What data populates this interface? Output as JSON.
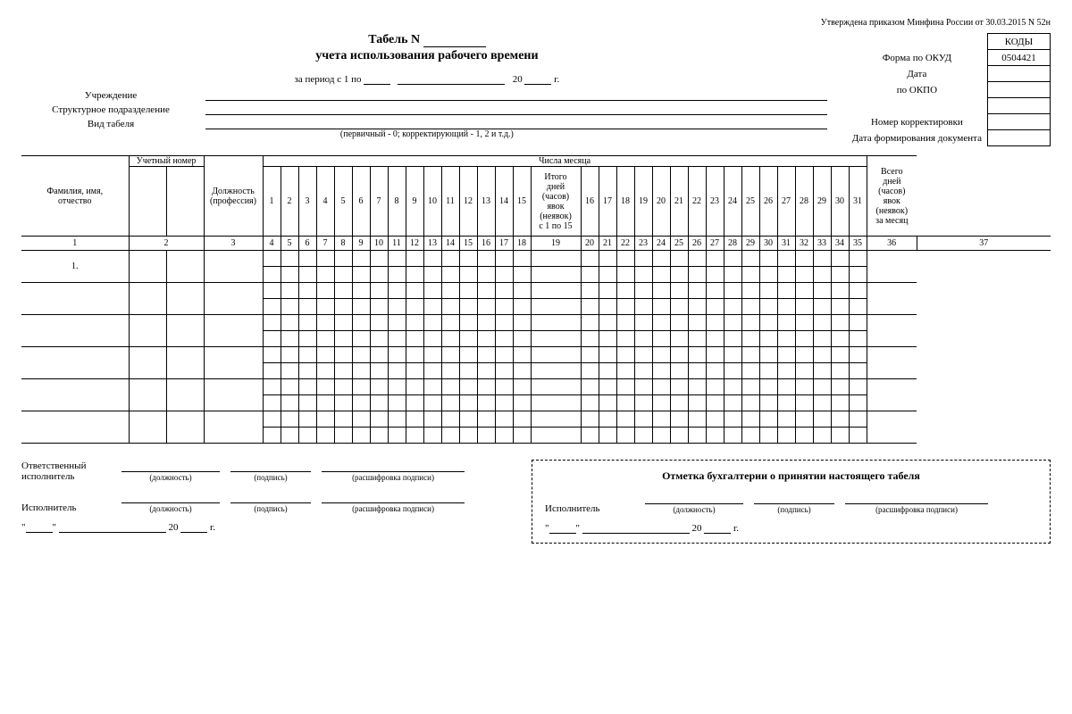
{
  "approval_note": "Утверждена приказом Минфина России от 30.03.2015 N 52н",
  "title": {
    "line1_prefix": "Табель N",
    "line2": "учета использования рабочего времени"
  },
  "period": {
    "prefix": "за период с 1 по",
    "year_prefix": "20",
    "year_suffix": "г."
  },
  "org": {
    "institution_label": "Учреждение",
    "subdivision_label": "Структурное подразделение",
    "tabel_type_label": "Вид табеля",
    "tabel_type_note": "(первичный - 0; корректирующий - 1, 2 и т.д.)"
  },
  "codes": {
    "header": "КОДЫ",
    "rows": [
      {
        "label": "Форма по ОКУД",
        "value": "0504421"
      },
      {
        "label": "Дата",
        "value": ""
      },
      {
        "label": "по ОКПО",
        "value": ""
      },
      {
        "label": "",
        "value": ""
      },
      {
        "label": "Номер корректировки",
        "value": ""
      },
      {
        "label": "Дата формирования документа",
        "value": ""
      }
    ]
  },
  "sheet": {
    "headers": {
      "name": "Фамилия, имя,\nотчество",
      "acct_num": "Учетный номер",
      "job": "Должность\n(профессия)",
      "days_group": "Числа месяца",
      "subtotal": "Итого\nдней\n(часов)\nявок\n(неявок)\nс 1 по 15",
      "total": "Всего\nдней\n(часов)\nявок\n(неявок)\nза месяц"
    },
    "days_1_15": [
      "1",
      "2",
      "3",
      "4",
      "5",
      "6",
      "7",
      "8",
      "9",
      "10",
      "11",
      "12",
      "13",
      "14",
      "15"
    ],
    "days_16_31": [
      "16",
      "17",
      "18",
      "19",
      "20",
      "21",
      "22",
      "23",
      "24",
      "25",
      "26",
      "27",
      "28",
      "29",
      "30",
      "31"
    ],
    "col_numbers": [
      "1",
      "2",
      "3",
      "4",
      "5",
      "6",
      "7",
      "8",
      "9",
      "10",
      "11",
      "12",
      "13",
      "14",
      "15",
      "16",
      "17",
      "18",
      "19",
      "20",
      "21",
      "22",
      "23",
      "24",
      "25",
      "26",
      "27",
      "28",
      "29",
      "30",
      "31",
      "32",
      "33",
      "34",
      "35",
      "36",
      "37"
    ],
    "first_row_label": "1."
  },
  "sign": {
    "left": {
      "responsible_label": "Ответственный\nисполнитель",
      "executor_label": "Исполнитель",
      "caps": {
        "position": "(должность)",
        "signature": "(подпись)",
        "decipher": "(расшифровка подписи)"
      },
      "date_year_prefix": "20",
      "date_year_suffix": "г."
    },
    "right": {
      "title": "Отметка бухгалтерии о принятии настоящего табеля",
      "executor_label": "Исполнитель",
      "caps": {
        "position": "(должность)",
        "signature": "(подпись)",
        "decipher": "(расшифровка подписи)"
      },
      "date_year_prefix": "20",
      "date_year_suffix": "г."
    }
  }
}
